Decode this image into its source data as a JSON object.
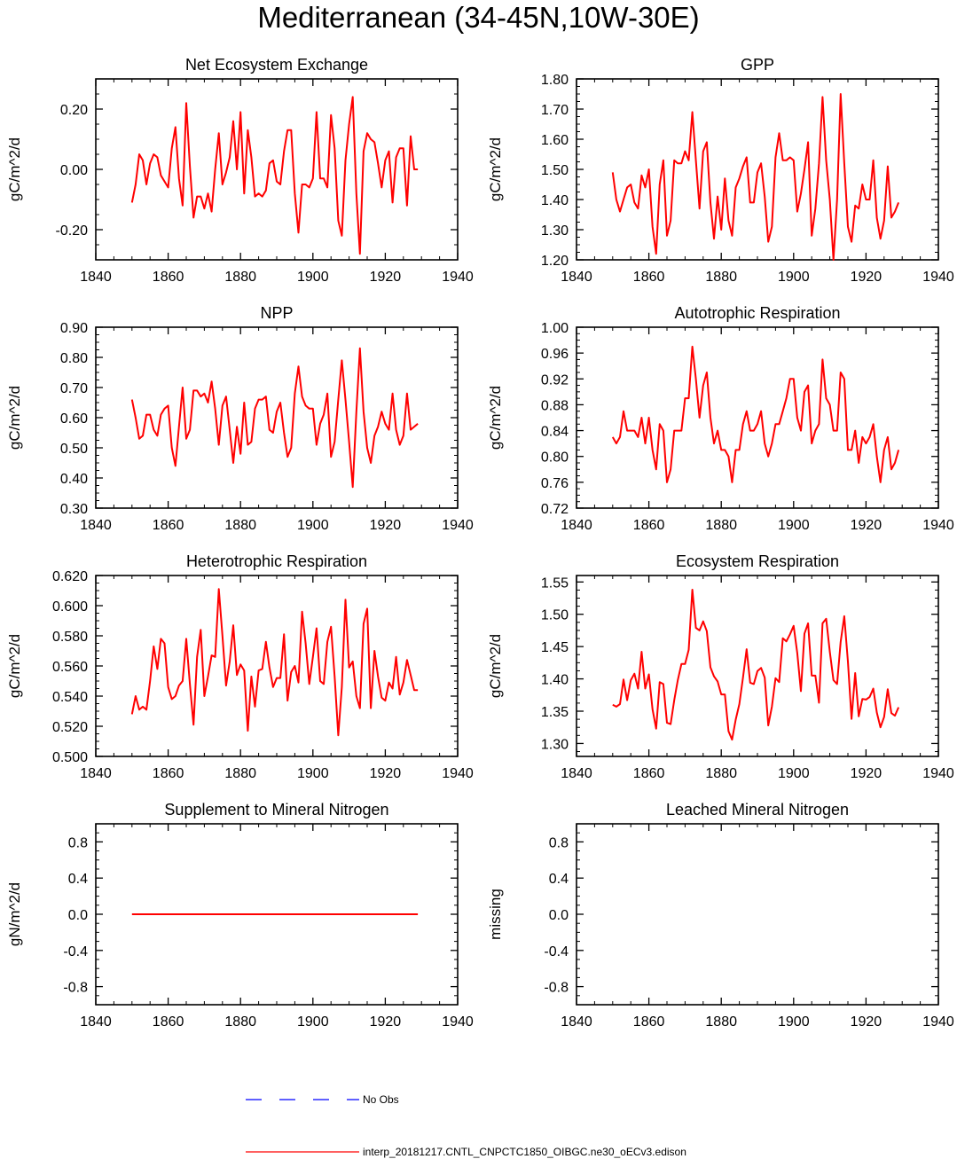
{
  "title": "Mediterranean (34-45N,10W-30E)",
  "colors": {
    "model": "#ff0000",
    "obs": "#0000ff",
    "axis": "#000000"
  },
  "legend": {
    "obs_label": "No Obs",
    "model_label": "interp_20181217.CNTL_CNPCTC1850_OIBGC.ne30_oECv3.edison"
  },
  "chart_data": [
    {
      "type": "line",
      "title": "Net Ecosystem Exchange",
      "ylabel": "gC/m^2/d",
      "xlim": [
        1840,
        1940
      ],
      "ylim": [
        -0.3,
        0.3
      ],
      "xticks": [
        1840,
        1860,
        1880,
        1900,
        1920,
        1940
      ],
      "yticks": [
        -0.2,
        0.0,
        0.2
      ],
      "ytick_labels": [
        "-0.20",
        "0.00",
        "0.20"
      ],
      "x_start": 1850,
      "series": [
        {
          "name": "model",
          "values": [
            -0.11,
            -0.05,
            0.05,
            0.03,
            -0.05,
            0.02,
            0.05,
            0.04,
            -0.02,
            -0.04,
            -0.06,
            0.07,
            0.14,
            -0.03,
            -0.12,
            0.22,
            0.01,
            -0.16,
            -0.09,
            -0.09,
            -0.13,
            -0.08,
            -0.14,
            0.0,
            0.12,
            -0.05,
            -0.01,
            0.04,
            0.16,
            0.0,
            0.19,
            -0.08,
            0.13,
            0.04,
            -0.09,
            -0.08,
            -0.09,
            -0.07,
            0.02,
            0.03,
            -0.04,
            -0.05,
            0.06,
            0.13,
            0.13,
            -0.08,
            -0.21,
            -0.05,
            -0.05,
            -0.06,
            -0.03,
            0.19,
            -0.03,
            -0.03,
            -0.06,
            0.18,
            0.07,
            -0.17,
            -0.22,
            0.03,
            0.15,
            0.24,
            -0.08,
            -0.28,
            0.06,
            0.12,
            0.1,
            0.09,
            0.02,
            -0.06,
            0.03,
            0.06,
            -0.11,
            0.04,
            0.07,
            0.07,
            -0.12,
            0.11,
            0.0,
            0.0
          ]
        }
      ]
    },
    {
      "type": "line",
      "title": "GPP",
      "ylabel": "gC/m^2/d",
      "xlim": [
        1840,
        1940
      ],
      "ylim": [
        1.2,
        1.8
      ],
      "xticks": [
        1840,
        1860,
        1880,
        1900,
        1920,
        1940
      ],
      "yticks": [
        1.2,
        1.3,
        1.4,
        1.5,
        1.6,
        1.7,
        1.8
      ],
      "ytick_labels": [
        "1.20",
        "1.30",
        "1.40",
        "1.50",
        "1.60",
        "1.70",
        "1.80"
      ],
      "x_start": 1850,
      "series": [
        {
          "name": "model",
          "values": [
            1.49,
            1.4,
            1.36,
            1.4,
            1.44,
            1.45,
            1.39,
            1.37,
            1.48,
            1.44,
            1.5,
            1.31,
            1.22,
            1.45,
            1.53,
            1.28,
            1.33,
            1.53,
            1.52,
            1.52,
            1.56,
            1.53,
            1.69,
            1.53,
            1.37,
            1.56,
            1.59,
            1.39,
            1.27,
            1.41,
            1.3,
            1.47,
            1.33,
            1.28,
            1.44,
            1.47,
            1.51,
            1.54,
            1.39,
            1.39,
            1.49,
            1.52,
            1.41,
            1.26,
            1.31,
            1.54,
            1.62,
            1.53,
            1.53,
            1.54,
            1.53,
            1.36,
            1.42,
            1.5,
            1.59,
            1.28,
            1.37,
            1.52,
            1.74,
            1.53,
            1.4,
            1.2,
            1.4,
            1.75,
            1.52,
            1.31,
            1.26,
            1.38,
            1.37,
            1.45,
            1.4,
            1.4,
            1.53,
            1.34,
            1.27,
            1.33,
            1.51,
            1.34,
            1.36,
            1.39
          ]
        }
      ]
    },
    {
      "type": "line",
      "title": "NPP",
      "ylabel": "gC/m^2/d",
      "xlim": [
        1840,
        1940
      ],
      "ylim": [
        0.3,
        0.9
      ],
      "xticks": [
        1840,
        1860,
        1880,
        1900,
        1920,
        1940
      ],
      "yticks": [
        0.3,
        0.4,
        0.5,
        0.6,
        0.7,
        0.8,
        0.9
      ],
      "ytick_labels": [
        "0.30",
        "0.40",
        "0.50",
        "0.60",
        "0.70",
        "0.80",
        "0.90"
      ],
      "x_start": 1850,
      "series": [
        {
          "name": "model",
          "values": [
            0.66,
            0.6,
            0.53,
            0.54,
            0.61,
            0.61,
            0.56,
            0.54,
            0.61,
            0.63,
            0.64,
            0.5,
            0.44,
            0.57,
            0.7,
            0.53,
            0.56,
            0.69,
            0.69,
            0.67,
            0.68,
            0.65,
            0.72,
            0.63,
            0.51,
            0.64,
            0.67,
            0.56,
            0.45,
            0.57,
            0.48,
            0.65,
            0.51,
            0.52,
            0.63,
            0.66,
            0.66,
            0.67,
            0.56,
            0.55,
            0.62,
            0.65,
            0.55,
            0.47,
            0.5,
            0.68,
            0.77,
            0.67,
            0.64,
            0.63,
            0.63,
            0.51,
            0.58,
            0.61,
            0.68,
            0.47,
            0.52,
            0.66,
            0.79,
            0.66,
            0.52,
            0.37,
            0.62,
            0.83,
            0.62,
            0.5,
            0.45,
            0.54,
            0.57,
            0.62,
            0.58,
            0.56,
            0.68,
            0.56,
            0.51,
            0.54,
            0.68,
            0.56,
            0.57,
            0.58
          ]
        }
      ]
    },
    {
      "type": "line",
      "title": "Autotrophic Respiration",
      "ylabel": "gC/m^2/d",
      "xlim": [
        1840,
        1940
      ],
      "ylim": [
        0.72,
        1.0
      ],
      "xticks": [
        1840,
        1860,
        1880,
        1900,
        1920,
        1940
      ],
      "yticks": [
        0.72,
        0.76,
        0.8,
        0.84,
        0.88,
        0.92,
        0.96,
        1.0
      ],
      "ytick_labels": [
        "0.72",
        "0.76",
        "0.80",
        "0.84",
        "0.88",
        "0.92",
        "0.96",
        "1.00"
      ],
      "x_start": 1850,
      "series": [
        {
          "name": "model",
          "values": [
            0.83,
            0.82,
            0.83,
            0.87,
            0.84,
            0.84,
            0.84,
            0.83,
            0.86,
            0.82,
            0.86,
            0.81,
            0.78,
            0.85,
            0.84,
            0.76,
            0.78,
            0.84,
            0.84,
            0.84,
            0.89,
            0.89,
            0.97,
            0.92,
            0.86,
            0.91,
            0.93,
            0.86,
            0.82,
            0.84,
            0.81,
            0.81,
            0.8,
            0.76,
            0.81,
            0.81,
            0.85,
            0.87,
            0.84,
            0.84,
            0.85,
            0.87,
            0.82,
            0.8,
            0.82,
            0.85,
            0.85,
            0.87,
            0.89,
            0.92,
            0.92,
            0.86,
            0.84,
            0.9,
            0.91,
            0.82,
            0.84,
            0.85,
            0.95,
            0.89,
            0.88,
            0.84,
            0.84,
            0.93,
            0.92,
            0.81,
            0.81,
            0.84,
            0.79,
            0.83,
            0.82,
            0.83,
            0.85,
            0.8,
            0.76,
            0.81,
            0.83,
            0.78,
            0.79,
            0.81
          ]
        }
      ]
    },
    {
      "type": "line",
      "title": "Heterotrophic Respiration",
      "ylabel": "gC/m^2/d",
      "xlim": [
        1840,
        1940
      ],
      "ylim": [
        0.5,
        0.62
      ],
      "xticks": [
        1840,
        1860,
        1880,
        1900,
        1920,
        1940
      ],
      "yticks": [
        0.5,
        0.52,
        0.54,
        0.56,
        0.58,
        0.6,
        0.62
      ],
      "ytick_labels": [
        "0.500",
        "0.520",
        "0.540",
        "0.560",
        "0.580",
        "0.600",
        "0.620"
      ],
      "x_start": 1850,
      "series": [
        {
          "name": "model",
          "values": [
            0.528,
            0.54,
            0.531,
            0.533,
            0.531,
            0.55,
            0.573,
            0.558,
            0.578,
            0.575,
            0.546,
            0.538,
            0.54,
            0.547,
            0.55,
            0.578,
            0.548,
            0.521,
            0.566,
            0.584,
            0.54,
            0.553,
            0.567,
            0.566,
            0.611,
            0.58,
            0.547,
            0.563,
            0.587,
            0.554,
            0.561,
            0.557,
            0.517,
            0.553,
            0.533,
            0.557,
            0.558,
            0.576,
            0.559,
            0.546,
            0.552,
            0.552,
            0.581,
            0.537,
            0.556,
            0.56,
            0.549,
            0.596,
            0.575,
            0.548,
            0.566,
            0.585,
            0.55,
            0.548,
            0.576,
            0.586,
            0.553,
            0.514,
            0.546,
            0.604,
            0.559,
            0.563,
            0.54,
            0.532,
            0.588,
            0.598,
            0.532,
            0.57,
            0.553,
            0.539,
            0.537,
            0.549,
            0.545,
            0.566,
            0.541,
            0.549,
            0.564,
            0.554,
            0.544,
            0.544
          ]
        }
      ]
    },
    {
      "type": "line",
      "title": "Ecosystem Respiration",
      "ylabel": "gC/m^2/d",
      "xlim": [
        1840,
        1940
      ],
      "ylim": [
        1.28,
        1.56
      ],
      "xticks": [
        1840,
        1860,
        1880,
        1900,
        1920,
        1940
      ],
      "yticks": [
        1.3,
        1.35,
        1.4,
        1.45,
        1.5,
        1.55
      ],
      "ytick_labels": [
        "1.30",
        "1.35",
        "1.40",
        "1.45",
        "1.50",
        "1.55"
      ],
      "x_start": 1850,
      "series": [
        {
          "name": "model",
          "values": [
            1.36,
            1.357,
            1.361,
            1.399,
            1.367,
            1.398,
            1.408,
            1.385,
            1.442,
            1.385,
            1.407,
            1.353,
            1.323,
            1.395,
            1.392,
            1.332,
            1.33,
            1.367,
            1.398,
            1.423,
            1.423,
            1.445,
            1.538,
            1.479,
            1.475,
            1.489,
            1.474,
            1.418,
            1.404,
            1.396,
            1.376,
            1.376,
            1.319,
            1.306,
            1.337,
            1.361,
            1.402,
            1.446,
            1.394,
            1.392,
            1.412,
            1.417,
            1.402,
            1.328,
            1.357,
            1.401,
            1.395,
            1.463,
            1.458,
            1.469,
            1.482,
            1.44,
            1.381,
            1.47,
            1.486,
            1.405,
            1.405,
            1.363,
            1.486,
            1.493,
            1.442,
            1.398,
            1.392,
            1.457,
            1.497,
            1.427,
            1.338,
            1.409,
            1.342,
            1.369,
            1.368,
            1.372,
            1.385,
            1.348,
            1.325,
            1.341,
            1.384,
            1.347,
            1.343,
            1.356
          ]
        }
      ]
    },
    {
      "type": "line",
      "title": "Supplement to Mineral Nitrogen",
      "ylabel": "gN/m^2/d",
      "xlim": [
        1840,
        1940
      ],
      "ylim": [
        -1.0,
        1.0
      ],
      "xticks": [
        1840,
        1860,
        1880,
        1900,
        1920,
        1940
      ],
      "yticks": [
        -0.8,
        -0.4,
        0.0,
        0.4,
        0.8
      ],
      "ytick_labels": [
        "-0.8",
        "-0.4",
        "0.0",
        "0.4",
        "0.8"
      ],
      "x_start": 1850,
      "series": [
        {
          "name": "model",
          "values": [
            0,
            0,
            0,
            0,
            0,
            0,
            0,
            0,
            0,
            0,
            0,
            0,
            0,
            0,
            0,
            0,
            0,
            0,
            0,
            0,
            0,
            0,
            0,
            0,
            0,
            0,
            0,
            0,
            0,
            0,
            0,
            0,
            0,
            0,
            0,
            0,
            0,
            0,
            0,
            0,
            0,
            0,
            0,
            0,
            0,
            0,
            0,
            0,
            0,
            0,
            0,
            0,
            0,
            0,
            0,
            0,
            0,
            0,
            0,
            0,
            0,
            0,
            0,
            0,
            0,
            0,
            0,
            0,
            0,
            0,
            0,
            0,
            0,
            0,
            0,
            0,
            0,
            0,
            0,
            0
          ]
        }
      ]
    },
    {
      "type": "line",
      "title": "Leached Mineral Nitrogen",
      "ylabel": "missing",
      "xlim": [
        1840,
        1940
      ],
      "ylim": [
        -1.0,
        1.0
      ],
      "xticks": [
        1840,
        1860,
        1880,
        1900,
        1920,
        1940
      ],
      "yticks": [
        -0.8,
        -0.4,
        0.0,
        0.4,
        0.8
      ],
      "ytick_labels": [
        "-0.8",
        "-0.4",
        "0.0",
        "0.4",
        "0.8"
      ],
      "x_start": 1850,
      "series": []
    }
  ]
}
